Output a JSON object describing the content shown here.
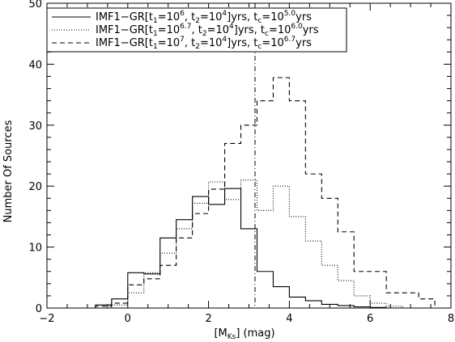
{
  "chart_data": {
    "type": "histogram",
    "xlabel": {
      "open": "[M",
      "sub": "Ks",
      "close": "] (mag)"
    },
    "ylabel": "Number Of Sources",
    "xlim": [
      -2,
      8
    ],
    "ylim": [
      0,
      50
    ],
    "x_ticks": [
      -2,
      0,
      2,
      4,
      6,
      8
    ],
    "y_ticks": [
      0,
      10,
      20,
      30,
      40,
      50
    ],
    "x_minor_step": 0.5,
    "y_minor_step": 2,
    "vline": {
      "x": 3.15,
      "style": "dash-dot"
    },
    "bin_edges": [
      -0.8,
      -0.4,
      0.0,
      0.4,
      0.8,
      1.2,
      1.6,
      2.0,
      2.4,
      2.8,
      3.2,
      3.6,
      4.0,
      4.4,
      4.8,
      5.2,
      5.6,
      6.0,
      6.4,
      6.8,
      7.2,
      7.6
    ],
    "series": [
      {
        "label_parts": [
          [
            "IMF1−GR[t",
            "n"
          ],
          [
            "1",
            "sub"
          ],
          [
            "=10",
            "n"
          ],
          [
            "6",
            "sup"
          ],
          [
            ", t",
            "n"
          ],
          [
            "2",
            "sub"
          ],
          [
            "=10",
            "n"
          ],
          [
            "4",
            "sup"
          ],
          [
            "]yrs,  t",
            "n"
          ],
          [
            "c",
            "sub"
          ],
          [
            "=10",
            "n"
          ],
          [
            "5.0",
            "sup"
          ],
          [
            "yrs",
            "n"
          ]
        ],
        "style": "solid",
        "values": [
          0.5,
          1.5,
          5.8,
          5.6,
          11.5,
          14.5,
          18.3,
          17.0,
          19.6,
          13.0,
          6.0,
          3.5,
          1.8,
          1.2,
          0.6,
          0.4,
          0.2,
          0.1,
          0,
          0,
          0
        ]
      },
      {
        "label_parts": [
          [
            "IMF1−GR[t",
            "n"
          ],
          [
            "1",
            "sub"
          ],
          [
            "=10",
            "n"
          ],
          [
            "6.7",
            "sup"
          ],
          [
            ", t",
            "n"
          ],
          [
            "2",
            "sub"
          ],
          [
            "=10",
            "n"
          ],
          [
            "4",
            "sup"
          ],
          [
            "]yrs,  t",
            "n"
          ],
          [
            "c",
            "sub"
          ],
          [
            "=10",
            "n"
          ],
          [
            "6.0",
            "sup"
          ],
          [
            "yrs",
            "n"
          ]
        ],
        "style": "dotted",
        "values": [
          0,
          0.5,
          2.5,
          5.8,
          9.0,
          13.0,
          17.2,
          20.7,
          17.8,
          21.0,
          16.0,
          20.0,
          15.0,
          11.0,
          7.0,
          4.5,
          2.0,
          0.8,
          0.3,
          0,
          0
        ]
      },
      {
        "label_parts": [
          [
            "IMF1−GR[t",
            "n"
          ],
          [
            "1",
            "sub"
          ],
          [
            "=10",
            "n"
          ],
          [
            "7",
            "sup"
          ],
          [
            ", t",
            "n"
          ],
          [
            "2",
            "sub"
          ],
          [
            "=10",
            "n"
          ],
          [
            "4",
            "sup"
          ],
          [
            "]yrs,  t",
            "n"
          ],
          [
            "c",
            "sub"
          ],
          [
            "=10",
            "n"
          ],
          [
            "6.7",
            "sup"
          ],
          [
            "yrs",
            "n"
          ]
        ],
        "style": "dashed",
        "values": [
          0.3,
          0.8,
          3.8,
          4.8,
          7.0,
          11.5,
          15.5,
          19.5,
          27.0,
          30.0,
          34.0,
          37.8,
          34.0,
          22.0,
          18.0,
          12.5,
          6.0,
          6.0,
          2.5,
          2.5,
          1.5
        ]
      }
    ]
  }
}
